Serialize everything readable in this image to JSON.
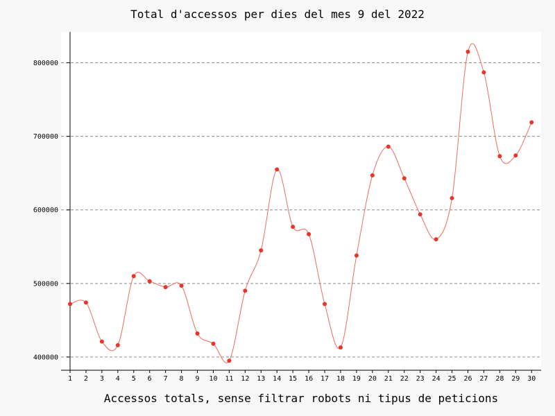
{
  "chart_data": {
    "type": "line",
    "title": "Total d'accessos per dies del mes 9 del 2022",
    "xlabel": "Accessos totals, sense filtrar robots ni tipus de peticions",
    "ylabel": "",
    "x": [
      1,
      2,
      3,
      4,
      5,
      6,
      7,
      8,
      9,
      10,
      11,
      12,
      13,
      14,
      15,
      16,
      17,
      18,
      19,
      20,
      21,
      22,
      23,
      24,
      25,
      26,
      27,
      28,
      29,
      30
    ],
    "series": [
      {
        "values": [
          472000,
          474000,
          421000,
          416000,
          510000,
          503000,
          495000,
          497000,
          432000,
          418000,
          395000,
          490000,
          545000,
          655000,
          577000,
          567000,
          472000,
          413000,
          538000,
          647000,
          686000,
          643000,
          594000,
          560000,
          616000,
          815000,
          787000,
          673000,
          674000,
          719000
        ]
      }
    ],
    "yticks": [
      400000,
      500000,
      600000,
      700000,
      800000
    ],
    "ylim": [
      382000,
      842000
    ],
    "xlim": [
      1,
      30.6
    ],
    "grid": true,
    "colors": {
      "line": "#f06a5a",
      "marker": "#e8352b",
      "grid": "#8a8a8a",
      "plot_bg": "#ffffff"
    }
  }
}
